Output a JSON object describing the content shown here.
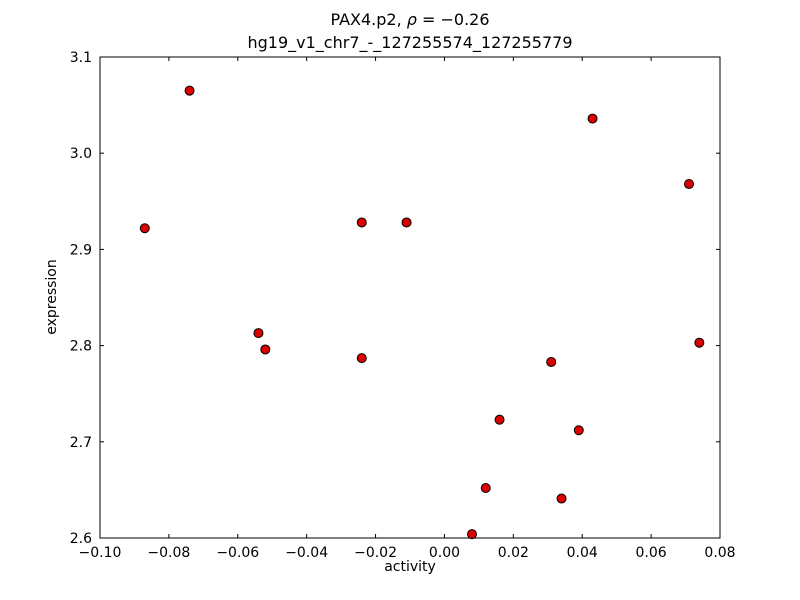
{
  "figure": {
    "title_prefix": "PAX4.p2, ",
    "title_rho": "ρ",
    "title_rest": " = −0.26",
    "subtitle": "hg19_v1_chr7_-_127255574_127255779"
  },
  "chart_data": {
    "type": "scatter",
    "title": "PAX4.p2, ρ = −0.26",
    "subtitle": "hg19_v1_chr7_-_127255574_127255779",
    "xlabel": "activity",
    "ylabel": "expression",
    "xlim": [
      -0.1,
      0.08
    ],
    "ylim": [
      2.6,
      3.1
    ],
    "xticks": [
      -0.1,
      -0.08,
      -0.06,
      -0.04,
      -0.02,
      0.0,
      0.02,
      0.04,
      0.06,
      0.08
    ],
    "xtick_labels": [
      "−0.10",
      "−0.08",
      "−0.06",
      "−0.04",
      "−0.02",
      "0.00",
      "0.02",
      "0.04",
      "0.06",
      "0.08"
    ],
    "yticks": [
      2.6,
      2.7,
      2.8,
      2.9,
      3.0,
      3.1
    ],
    "ytick_labels": [
      "2.6",
      "2.7",
      "2.8",
      "2.9",
      "3.0",
      "3.1"
    ],
    "grid": false,
    "legend": "none",
    "marker": "circle",
    "marker_fill": "#dd0000",
    "marker_edge": "#000000",
    "frame_color": "#000000",
    "points": [
      [
        -0.087,
        2.922
      ],
      [
        -0.074,
        3.065
      ],
      [
        -0.054,
        2.813
      ],
      [
        -0.052,
        2.796
      ],
      [
        -0.024,
        2.928
      ],
      [
        -0.024,
        2.787
      ],
      [
        -0.011,
        2.928
      ],
      [
        0.008,
        2.604
      ],
      [
        0.012,
        2.652
      ],
      [
        0.016,
        2.723
      ],
      [
        0.031,
        2.783
      ],
      [
        0.034,
        2.641
      ],
      [
        0.039,
        2.712
      ],
      [
        0.043,
        3.036
      ],
      [
        0.071,
        2.968
      ],
      [
        0.074,
        2.803
      ]
    ]
  }
}
